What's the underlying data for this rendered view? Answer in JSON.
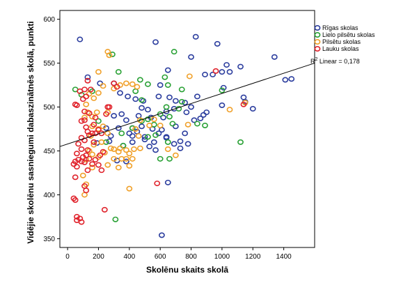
{
  "chart_data": {
    "type": "scatter",
    "xlabel": "Skolēnu skaits skolā",
    "ylabel": "Vidējie skolēnu sasniegumi dabaszinātnēs skolā, punkti",
    "xlim": [
      -50,
      1600
    ],
    "ylim": [
      340,
      610
    ],
    "xticks": [
      0,
      200,
      400,
      600,
      800,
      1000,
      1200,
      1400
    ],
    "yticks": [
      350,
      400,
      450,
      500,
      550,
      600
    ],
    "grid": false,
    "legend_position": "top-right",
    "fit_line": {
      "label_prefix": "R",
      "label_sup": "2",
      "label_rest": " Linear = 0,178",
      "x": [
        -50,
        1600
      ],
      "y": [
        455,
        550
      ]
    },
    "series": [
      {
        "name": "Rīgas skolas",
        "color": "#2b3d9e",
        "points": [
          [
            80,
            577
          ],
          [
            570,
            574
          ],
          [
            830,
            580
          ],
          [
            970,
            572
          ],
          [
            650,
            542
          ],
          [
            600,
            525
          ],
          [
            800,
            557
          ],
          [
            890,
            537
          ],
          [
            940,
            537
          ],
          [
            1000,
            540
          ],
          [
            1030,
            548
          ],
          [
            1120,
            546
          ],
          [
            1340,
            557
          ],
          [
            1410,
            531
          ],
          [
            1450,
            532
          ],
          [
            1010,
            522
          ],
          [
            1140,
            511
          ],
          [
            1150,
            506
          ],
          [
            1200,
            498
          ],
          [
            1000,
            502
          ],
          [
            840,
            512
          ],
          [
            760,
            505
          ],
          [
            700,
            507
          ],
          [
            660,
            511
          ],
          [
            490,
            507
          ],
          [
            520,
            497
          ],
          [
            540,
            488
          ],
          [
            590,
            512
          ],
          [
            640,
            495
          ],
          [
            690,
            498
          ],
          [
            770,
            494
          ],
          [
            800,
            500
          ],
          [
            860,
            487
          ],
          [
            880,
            491
          ],
          [
            900,
            494
          ],
          [
            820,
            485
          ],
          [
            760,
            470
          ],
          [
            620,
            488
          ],
          [
            590,
            470
          ],
          [
            550,
            475
          ],
          [
            480,
            478
          ],
          [
            460,
            490
          ],
          [
            420,
            476
          ],
          [
            400,
            470
          ],
          [
            380,
            485
          ],
          [
            350,
            492
          ],
          [
            300,
            490
          ],
          [
            330,
            476
          ],
          [
            280,
            467
          ],
          [
            250,
            476
          ],
          [
            270,
            461
          ],
          [
            360,
            456
          ],
          [
            420,
            467
          ],
          [
            450,
            472
          ],
          [
            500,
            466
          ],
          [
            530,
            455
          ],
          [
            570,
            451
          ],
          [
            610,
            474
          ],
          [
            640,
            466
          ],
          [
            700,
            478
          ],
          [
            730,
            461
          ],
          [
            780,
            458
          ],
          [
            730,
            453
          ],
          [
            690,
            458
          ],
          [
            640,
            465
          ],
          [
            560,
            460
          ],
          [
            500,
            463
          ],
          [
            420,
            460
          ],
          [
            190,
            459
          ],
          [
            320,
            439
          ],
          [
            380,
            438
          ],
          [
            650,
            414
          ],
          [
            130,
            534
          ],
          [
            210,
            527
          ],
          [
            300,
            527
          ],
          [
            340,
            516
          ],
          [
            390,
            512
          ],
          [
            440,
            509
          ],
          [
            480,
            499
          ],
          [
            1050,
            540
          ],
          [
            610,
            354
          ]
        ]
      },
      {
        "name": "Lielo pilsētu skolas",
        "color": "#29a135",
        "points": [
          [
            290,
            560
          ],
          [
            690,
            563
          ],
          [
            330,
            540
          ],
          [
            470,
            531
          ],
          [
            520,
            526
          ],
          [
            630,
            534
          ],
          [
            650,
            525
          ],
          [
            1000,
            519
          ],
          [
            740,
            520
          ],
          [
            740,
            506
          ],
          [
            640,
            500
          ],
          [
            660,
            489
          ],
          [
            600,
            492
          ],
          [
            520,
            486
          ],
          [
            480,
            484
          ],
          [
            560,
            480
          ],
          [
            420,
            476
          ],
          [
            350,
            470
          ],
          [
            360,
            456
          ],
          [
            250,
            460
          ],
          [
            520,
            466
          ],
          [
            650,
            460
          ],
          [
            680,
            481
          ],
          [
            840,
            481
          ],
          [
            890,
            479
          ],
          [
            1120,
            460
          ],
          [
            600,
            441
          ],
          [
            660,
            441
          ],
          [
            310,
            372
          ],
          [
            50,
            520
          ],
          [
            90,
            514
          ],
          [
            160,
            518
          ],
          [
            200,
            484
          ],
          [
            440,
            518
          ],
          [
            480,
            508
          ],
          [
            720,
            498
          ],
          [
            570,
            468
          ]
        ]
      },
      {
        "name": "Pilsētu skolas",
        "color": "#f0a029",
        "points": [
          [
            260,
            563
          ],
          [
            270,
            559
          ],
          [
            200,
            540
          ],
          [
            230,
            524
          ],
          [
            380,
            527
          ],
          [
            340,
            525
          ],
          [
            420,
            526
          ],
          [
            450,
            523
          ],
          [
            300,
            521
          ],
          [
            200,
            516
          ],
          [
            170,
            510
          ],
          [
            140,
            515
          ],
          [
            120,
            503
          ],
          [
            260,
            494
          ],
          [
            190,
            494
          ],
          [
            160,
            489
          ],
          [
            130,
            494
          ],
          [
            110,
            488
          ],
          [
            160,
            478
          ],
          [
            200,
            475
          ],
          [
            230,
            478
          ],
          [
            260,
            470
          ],
          [
            150,
            467
          ],
          [
            170,
            457
          ],
          [
            220,
            460
          ],
          [
            140,
            450
          ],
          [
            160,
            446
          ],
          [
            200,
            443
          ],
          [
            240,
            448
          ],
          [
            260,
            434
          ],
          [
            300,
            452
          ],
          [
            330,
            449
          ],
          [
            340,
            453
          ],
          [
            380,
            451
          ],
          [
            400,
            447
          ],
          [
            430,
            452
          ],
          [
            420,
            441
          ],
          [
            380,
            441
          ],
          [
            350,
            441
          ],
          [
            300,
            441
          ],
          [
            400,
            433
          ],
          [
            330,
            431
          ],
          [
            460,
            467
          ],
          [
            470,
            485
          ],
          [
            530,
            479
          ],
          [
            560,
            486
          ],
          [
            600,
            479
          ],
          [
            650,
            452
          ],
          [
            700,
            445
          ],
          [
            780,
            480
          ],
          [
            790,
            535
          ],
          [
            1050,
            497
          ],
          [
            1150,
            505
          ],
          [
            440,
            475
          ],
          [
            470,
            453
          ],
          [
            120,
            440
          ],
          [
            160,
            431
          ],
          [
            100,
            422
          ],
          [
            120,
            412
          ],
          [
            110,
            400
          ],
          [
            400,
            407
          ],
          [
            280,
            453
          ]
        ]
      },
      {
        "name": "Lauku skolas",
        "color": "#e0232c",
        "points": [
          [
            130,
            530
          ],
          [
            80,
            518
          ],
          [
            110,
            520
          ],
          [
            150,
            520
          ],
          [
            100,
            509
          ],
          [
            120,
            512
          ],
          [
            50,
            503
          ],
          [
            60,
            502
          ],
          [
            110,
            495
          ],
          [
            140,
            493
          ],
          [
            90,
            484
          ],
          [
            110,
            485
          ],
          [
            120,
            477
          ],
          [
            130,
            472
          ],
          [
            160,
            470
          ],
          [
            170,
            480
          ],
          [
            140,
            468
          ],
          [
            90,
            465
          ],
          [
            110,
            462
          ],
          [
            70,
            458
          ],
          [
            90,
            452
          ],
          [
            130,
            451
          ],
          [
            60,
            447
          ],
          [
            100,
            443
          ],
          [
            70,
            440
          ],
          [
            50,
            438
          ],
          [
            40,
            435
          ],
          [
            60,
            432
          ],
          [
            90,
            438
          ],
          [
            110,
            437
          ],
          [
            120,
            445
          ],
          [
            140,
            441
          ],
          [
            180,
            440
          ],
          [
            160,
            435
          ],
          [
            130,
            428
          ],
          [
            200,
            434
          ],
          [
            220,
            428
          ],
          [
            180,
            470
          ],
          [
            200,
            474
          ],
          [
            220,
            470
          ],
          [
            260,
            500
          ],
          [
            270,
            500
          ],
          [
            250,
            492
          ],
          [
            180,
            488
          ],
          [
            170,
            460
          ],
          [
            210,
            445
          ],
          [
            230,
            449
          ],
          [
            50,
            420
          ],
          [
            110,
            410
          ],
          [
            120,
            405
          ],
          [
            40,
            396
          ],
          [
            50,
            394
          ],
          [
            60,
            375
          ],
          [
            60,
            371
          ],
          [
            80,
            373
          ],
          [
            90,
            369
          ],
          [
            240,
            383
          ],
          [
            580,
            413
          ],
          [
            960,
            541
          ],
          [
            1140,
            503
          ],
          [
            300,
            527
          ],
          [
            320,
            523
          ]
        ]
      }
    ]
  }
}
